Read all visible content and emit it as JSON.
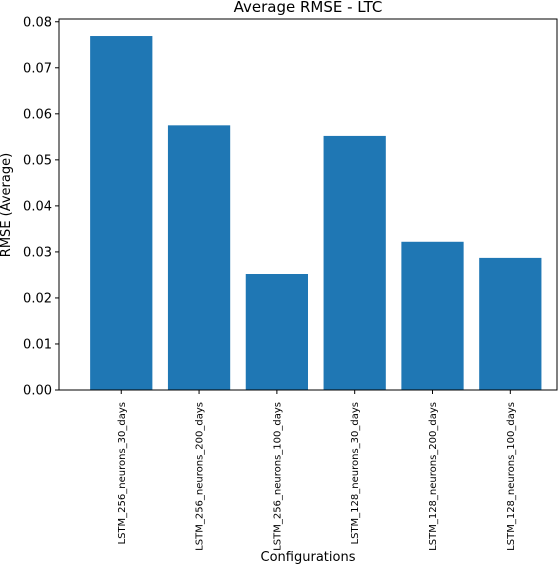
{
  "chart_data": {
    "type": "bar",
    "title": "Average RMSE - LTC",
    "xlabel": "Configurations",
    "ylabel": "RMSE (Average)",
    "categories": [
      "LSTM_256_neurons_30_days",
      "LSTM_256_neurons_200_days",
      "LSTM_256_neurons_100_days",
      "LSTM_128_neurons_30_days",
      "LSTM_128_neurons_200_days",
      "LSTM_128_neurons_100_days"
    ],
    "values": [
      0.0769,
      0.0575,
      0.0252,
      0.0552,
      0.0322,
      0.0287
    ],
    "ylim": [
      0,
      0.0806
    ],
    "yticks": [
      0.0,
      0.01,
      0.02,
      0.03,
      0.04,
      0.05,
      0.06,
      0.07,
      0.08
    ],
    "ytick_labels": [
      "0.00",
      "0.01",
      "0.02",
      "0.03",
      "0.04",
      "0.05",
      "0.06",
      "0.07",
      "0.08"
    ],
    "bar_color": "#1f77b4",
    "grid": false,
    "legend": "none"
  }
}
